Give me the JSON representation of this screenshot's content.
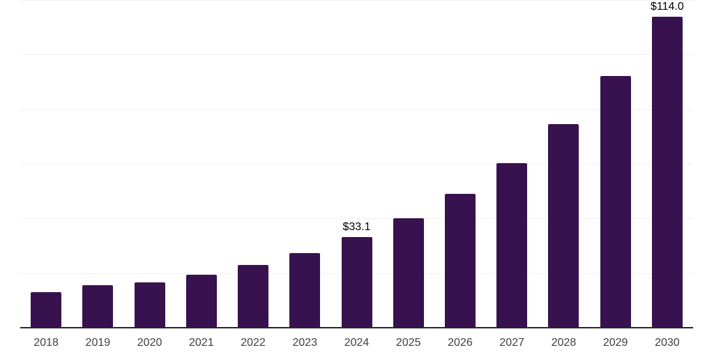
{
  "chart_data": {
    "type": "bar",
    "title": "",
    "xlabel": "",
    "ylabel": "",
    "categories": [
      "2018",
      "2019",
      "2020",
      "2021",
      "2022",
      "2023",
      "2024",
      "2025",
      "2026",
      "2027",
      "2028",
      "2029",
      "2030"
    ],
    "values": [
      12.9,
      15.6,
      16.7,
      19.4,
      22.9,
      27.4,
      33.1,
      40.2,
      49.0,
      60.2,
      74.5,
      92.1,
      114.0
    ],
    "point_labels": [
      "",
      "",
      "",
      "",
      "",
      "",
      "$33.1",
      "",
      "",
      "",
      "",
      "",
      "$114.0"
    ],
    "ylim": [
      0,
      120
    ],
    "grid_interval": 20,
    "grid": true,
    "y_tick_labels_visible": false,
    "legend": "none",
    "colors": {
      "bar": "#37124E",
      "grid_line": "#f1f1f1",
      "axis_line": "#262626",
      "tick_label": "#3f3f3f",
      "data_label": "#000000",
      "background": "#ffffff"
    }
  }
}
